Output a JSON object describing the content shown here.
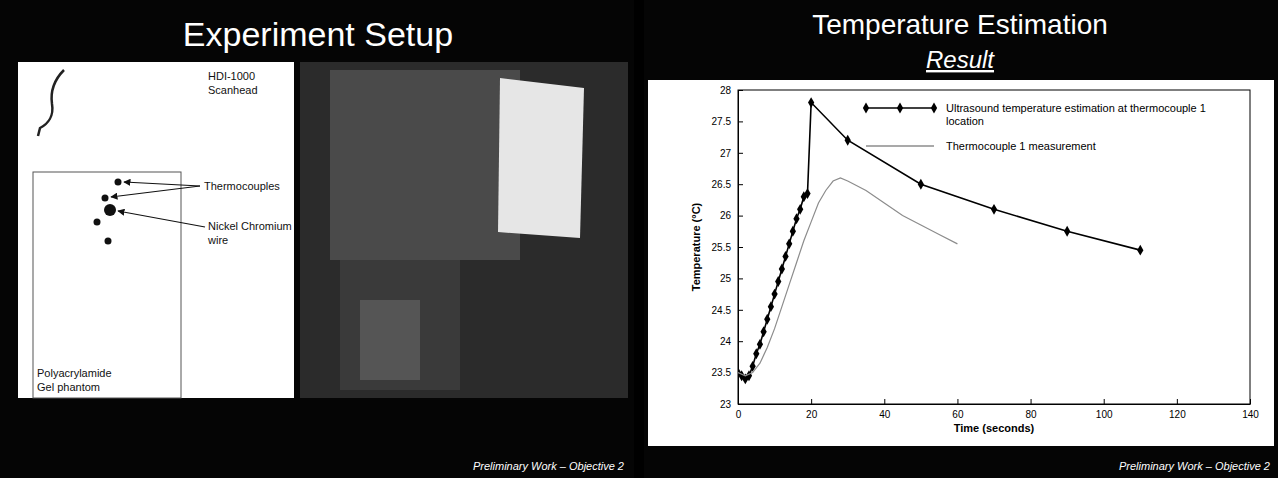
{
  "slides": [
    {
      "title": "Experiment Setup",
      "footer": "Preliminary Work – Objective 2",
      "diagram": {
        "labels": [
          {
            "lines": [
              "HDI-1000",
              "Scanhead"
            ]
          },
          {
            "lines": [
              "Thermocouples"
            ]
          },
          {
            "lines": [
              "Nickel Chromium",
              "wire"
            ]
          },
          {
            "lines": [
              "Polyacrylamide",
              "Gel phantom"
            ]
          }
        ]
      }
    },
    {
      "footer": "Preliminary Work – Objective 2"
    }
  ],
  "chart_data": {
    "type": "line",
    "title": "Temperature Estimation",
    "subtitle": "Result",
    "x_label": "Time (seconds)",
    "y_label": "Temperature (°C)",
    "xlim": [
      0,
      140
    ],
    "xticks": [
      0,
      20,
      40,
      60,
      80,
      100,
      120,
      140
    ],
    "ylim": [
      23,
      28
    ],
    "yticks": [
      23,
      23.5,
      24,
      24.5,
      25,
      25.5,
      26,
      26.5,
      27,
      27.5,
      28
    ],
    "grid": false,
    "legend": "upper right",
    "series": [
      {
        "name": "Ultrasound temperature estimation at thermocouple 1 location",
        "color": "#000000",
        "marker": "diamond",
        "line_style": "solid",
        "x": [
          0,
          1,
          2,
          3,
          4,
          5,
          6,
          7,
          8,
          9,
          10,
          11,
          12,
          13,
          14,
          15,
          16,
          17,
          18,
          19,
          20,
          30,
          50,
          70,
          90,
          110
        ],
        "values": [
          23.5,
          23.45,
          23.4,
          23.45,
          23.6,
          23.8,
          23.95,
          24.15,
          24.35,
          24.55,
          24.75,
          24.95,
          25.15,
          25.35,
          25.55,
          25.75,
          25.95,
          26.1,
          26.3,
          26.35,
          27.8,
          27.2,
          26.5,
          26.1,
          25.75,
          25.45
        ]
      },
      {
        "name": "Thermocouple 1 measurement",
        "color": "#8c8c8c",
        "marker": "none",
        "line_style": "solid",
        "x": [
          0,
          2,
          4,
          6,
          8,
          10,
          12,
          14,
          16,
          18,
          20,
          22,
          24,
          26,
          28,
          30,
          35,
          40,
          45,
          50,
          55,
          60
        ],
        "values": [
          23.5,
          23.45,
          23.5,
          23.65,
          23.9,
          24.2,
          24.55,
          24.9,
          25.25,
          25.6,
          25.9,
          26.2,
          26.4,
          26.55,
          26.6,
          26.55,
          26.4,
          26.2,
          26.0,
          25.85,
          25.7,
          25.55
        ]
      }
    ]
  }
}
